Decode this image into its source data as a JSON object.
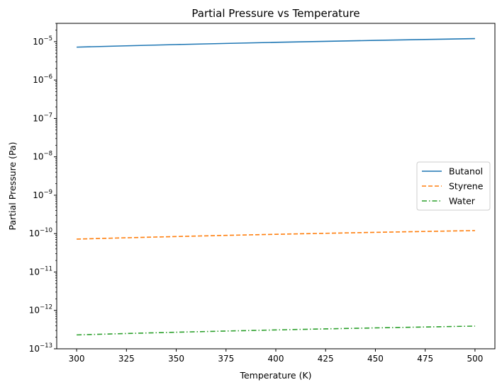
{
  "chart_data": {
    "type": "line",
    "title": "Partial Pressure vs Temperature",
    "xlabel": "Temperature (K)",
    "ylabel": "Partial Pressure (Pa)",
    "xlim": [
      290,
      510
    ],
    "ylim": [
      1e-13,
      3e-05
    ],
    "yscale": "log",
    "xticks": [
      300,
      325,
      350,
      375,
      400,
      425,
      450,
      475,
      500
    ],
    "yticks": [
      {
        "base": "10",
        "exp": "−13",
        "value": 1e-13
      },
      {
        "base": "10",
        "exp": "−12",
        "value": 1e-12
      },
      {
        "base": "10",
        "exp": "−11",
        "value": 1e-11
      },
      {
        "base": "10",
        "exp": "−10",
        "value": 1e-10
      },
      {
        "base": "10",
        "exp": "−9",
        "value": 1e-09
      },
      {
        "base": "10",
        "exp": "−8",
        "value": 1e-08
      },
      {
        "base": "10",
        "exp": "−7",
        "value": 1e-07
      },
      {
        "base": "10",
        "exp": "−6",
        "value": 1e-06
      },
      {
        "base": "10",
        "exp": "−5",
        "value": 1e-05
      }
    ],
    "grid": false,
    "legend_position": "center-right",
    "x": [
      300,
      325,
      350,
      375,
      400,
      425,
      450,
      475,
      500
    ],
    "series": [
      {
        "name": "Butanol",
        "color": "#1f77b4",
        "dash": "solid",
        "values": [
          7.2e-06,
          7.8e-06,
          8.4e-06,
          9e-06,
          9.6e-06,
          1.02e-05,
          1.08e-05,
          1.14e-05,
          1.2e-05
        ]
      },
      {
        "name": "Styrene",
        "color": "#ff7f0e",
        "dash": "dashed",
        "values": [
          7.2e-11,
          7.8e-11,
          8.4e-11,
          9e-11,
          9.6e-11,
          1.02e-10,
          1.08e-10,
          1.14e-10,
          1.2e-10
        ]
      },
      {
        "name": "Water",
        "color": "#2ca02c",
        "dash": "dashdot",
        "values": [
          2.3e-13,
          2.5e-13,
          2.7e-13,
          2.9e-13,
          3.1e-13,
          3.3e-13,
          3.5e-13,
          3.7e-13,
          3.9e-13
        ]
      }
    ]
  }
}
